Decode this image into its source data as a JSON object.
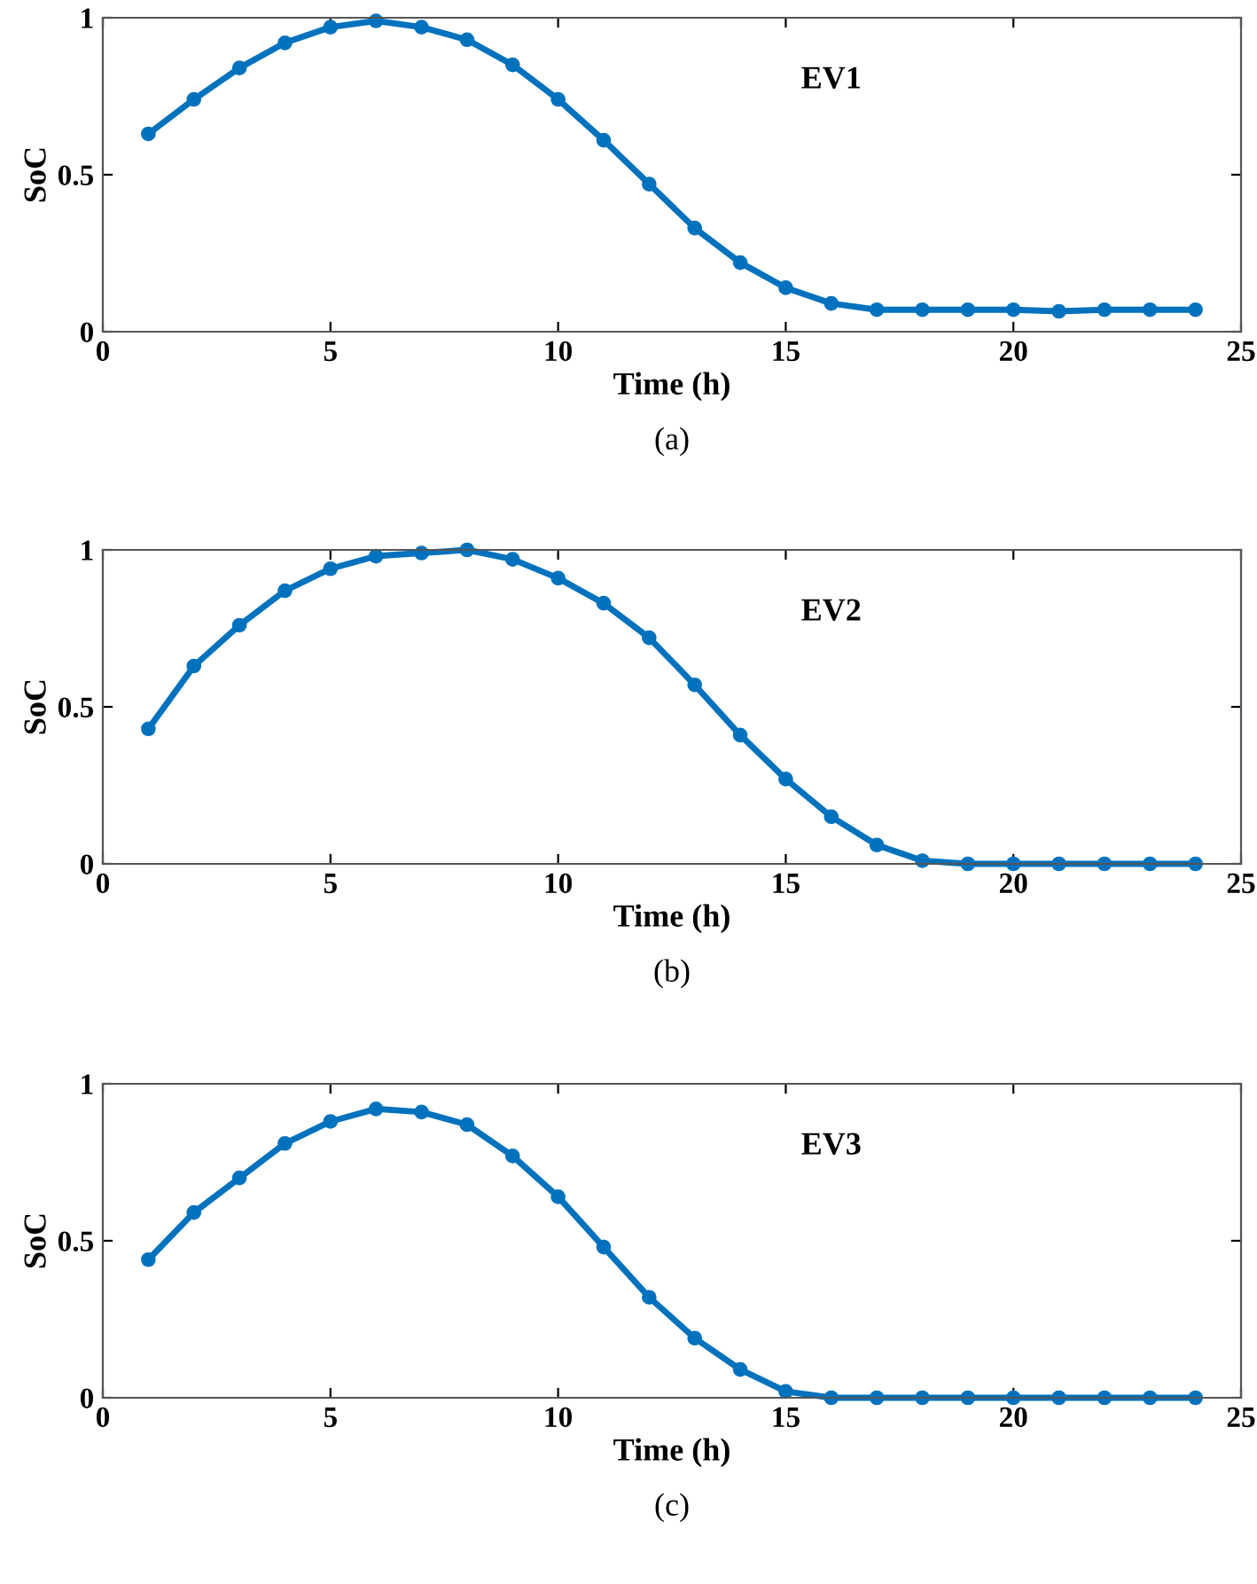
{
  "chart_data": [
    {
      "type": "line",
      "xlabel": "Time (h)",
      "ylabel": "SoC",
      "annotations": [
        "(a)"
      ],
      "x": [
        1,
        2,
        3,
        4,
        5,
        6,
        7,
        8,
        9,
        10,
        11,
        12,
        13,
        14,
        15,
        16,
        17,
        18,
        19,
        20,
        21,
        22,
        23,
        24
      ],
      "xlim": [
        0,
        25
      ],
      "xticks": [
        0,
        5,
        10,
        15,
        20,
        25
      ],
      "ylim": [
        0,
        1
      ],
      "yticks": [
        0,
        0.5,
        1
      ],
      "marker": "circle",
      "line_style": "solid",
      "series": [
        {
          "name": "EV1",
          "color": "#0072bd",
          "values": [
            0.63,
            0.74,
            0.84,
            0.92,
            0.97,
            0.99,
            0.97,
            0.93,
            0.85,
            0.74,
            0.61,
            0.47,
            0.33,
            0.22,
            0.14,
            0.09,
            0.07,
            0.07,
            0.07,
            0.07,
            0.065,
            0.07,
            0.07,
            0.07
          ]
        }
      ]
    },
    {
      "type": "line",
      "xlabel": "Time (h)",
      "ylabel": "SoC",
      "annotations": [
        "(b)"
      ],
      "x": [
        1,
        2,
        3,
        4,
        5,
        6,
        7,
        8,
        9,
        10,
        11,
        12,
        13,
        14,
        15,
        16,
        17,
        18,
        19,
        20,
        21,
        22,
        23,
        24
      ],
      "xlim": [
        0,
        25
      ],
      "xticks": [
        0,
        5,
        10,
        15,
        20,
        25
      ],
      "ylim": [
        0,
        1
      ],
      "yticks": [
        0,
        0.5,
        1
      ],
      "marker": "circle",
      "line_style": "solid",
      "series": [
        {
          "name": "EV2",
          "color": "#0072bd",
          "values": [
            0.43,
            0.63,
            0.76,
            0.87,
            0.94,
            0.98,
            0.99,
            1.0,
            0.97,
            0.91,
            0.83,
            0.72,
            0.57,
            0.41,
            0.27,
            0.15,
            0.06,
            0.01,
            0,
            0,
            0,
            0,
            0,
            0
          ]
        }
      ]
    },
    {
      "type": "line",
      "xlabel": "Time (h)",
      "ylabel": "SoC",
      "annotations": [
        "(c)"
      ],
      "x": [
        1,
        2,
        3,
        4,
        5,
        6,
        7,
        8,
        9,
        10,
        11,
        12,
        13,
        14,
        15,
        16,
        17,
        18,
        19,
        20,
        21,
        22,
        23,
        24
      ],
      "xlim": [
        0,
        25
      ],
      "xticks": [
        0,
        5,
        10,
        15,
        20,
        25
      ],
      "ylim": [
        0,
        1
      ],
      "yticks": [
        0,
        0.5,
        1
      ],
      "marker": "circle",
      "line_style": "solid",
      "series": [
        {
          "name": "EV3",
          "color": "#0072bd",
          "values": [
            0.44,
            0.59,
            0.7,
            0.81,
            0.88,
            0.92,
            0.91,
            0.87,
            0.77,
            0.64,
            0.48,
            0.32,
            0.19,
            0.09,
            0.02,
            0,
            0,
            0,
            0,
            0,
            0,
            0,
            0,
            0
          ]
        }
      ]
    }
  ]
}
